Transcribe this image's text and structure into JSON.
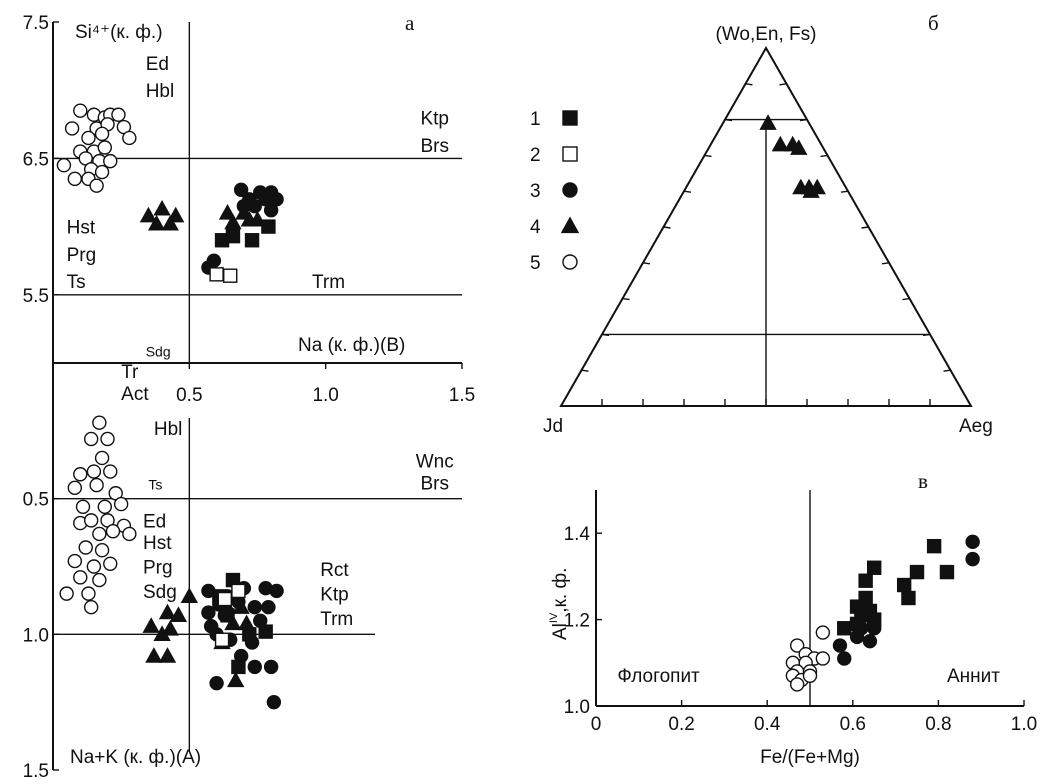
{
  "panel_labels": {
    "a": "а",
    "b": "б",
    "c": "в"
  },
  "legend": [
    {
      "label": "1",
      "marker": "square-filled"
    },
    {
      "label": "2",
      "marker": "square-open"
    },
    {
      "label": "3",
      "marker": "circle-filled"
    },
    {
      "label": "4",
      "marker": "triangle-filled"
    },
    {
      "label": "5",
      "marker": "circle-open"
    }
  ],
  "chart_data": [
    {
      "id": "a-upper",
      "type": "scatter",
      "ylabel": "Si⁴⁺(к. ф.)",
      "xlabel": "Na (к. ф.)(B)",
      "x_ticks": [
        "0.5",
        "1.0",
        "1.5"
      ],
      "y_ticks": [
        "7.5",
        "6.5",
        "5.5"
      ],
      "xlim": [
        0,
        1.5
      ],
      "ylim": [
        5.0,
        7.5
      ],
      "divider_x": 0.5,
      "divider_y": [
        6.5,
        5.5
      ],
      "field_labels": [
        {
          "text": "Ed",
          "x": 0.34,
          "y": 7.2
        },
        {
          "text": "Hbl",
          "x": 0.34,
          "y": 7.0
        },
        {
          "text": "Ktp",
          "x": 1.4,
          "y": 6.8
        },
        {
          "text": "Brs",
          "x": 1.4,
          "y": 6.6
        },
        {
          "text": "Hst",
          "x": 0.05,
          "y": 6.0
        },
        {
          "text": "Prg",
          "x": 0.05,
          "y": 5.8
        },
        {
          "text": "Ts",
          "x": 0.05,
          "y": 5.6
        },
        {
          "text": "Trm",
          "x": 0.95,
          "y": 5.6
        },
        {
          "text": "Sdg",
          "x": 0.34,
          "y": 5.1,
          "small": true
        }
      ],
      "series": [
        {
          "marker": "circle-open",
          "points": [
            [
              0.1,
              6.85
            ],
            [
              0.15,
              6.82
            ],
            [
              0.19,
              6.8
            ],
            [
              0.21,
              6.82
            ],
            [
              0.24,
              6.82
            ],
            [
              0.07,
              6.72
            ],
            [
              0.16,
              6.72
            ],
            [
              0.2,
              6.75
            ],
            [
              0.26,
              6.73
            ],
            [
              0.13,
              6.65
            ],
            [
              0.18,
              6.68
            ],
            [
              0.28,
              6.65
            ],
            [
              0.1,
              6.55
            ],
            [
              0.15,
              6.55
            ],
            [
              0.19,
              6.58
            ],
            [
              0.12,
              6.5
            ],
            [
              0.17,
              6.48
            ],
            [
              0.21,
              6.48
            ],
            [
              0.04,
              6.45
            ],
            [
              0.14,
              6.42
            ],
            [
              0.18,
              6.4
            ],
            [
              0.08,
              6.35
            ],
            [
              0.13,
              6.35
            ],
            [
              0.16,
              6.3
            ]
          ]
        },
        {
          "marker": "circle-filled",
          "points": [
            [
              0.69,
              6.27
            ],
            [
              0.76,
              6.25
            ],
            [
              0.8,
              6.25
            ],
            [
              0.72,
              6.2
            ],
            [
              0.78,
              6.2
            ],
            [
              0.82,
              6.2
            ],
            [
              0.7,
              6.15
            ],
            [
              0.74,
              6.15
            ],
            [
              0.8,
              6.12
            ],
            [
              0.59,
              5.75
            ],
            [
              0.57,
              5.7
            ]
          ]
        },
        {
          "marker": "triangle-filled",
          "points": [
            [
              0.4,
              6.13
            ],
            [
              0.35,
              6.08
            ],
            [
              0.45,
              6.08
            ],
            [
              0.38,
              6.02
            ],
            [
              0.43,
              6.02
            ],
            [
              0.64,
              6.1
            ],
            [
              0.7,
              6.1
            ],
            [
              0.66,
              6.03
            ],
            [
              0.72,
              6.05
            ],
            [
              0.75,
              6.05
            ]
          ]
        },
        {
          "marker": "square-filled",
          "points": [
            [
              0.66,
              5.93
            ],
            [
              0.62,
              5.9
            ],
            [
              0.73,
              5.9
            ],
            [
              0.79,
              6.0
            ]
          ]
        },
        {
          "marker": "square-open",
          "points": [
            [
              0.6,
              5.65
            ],
            [
              0.65,
              5.64
            ]
          ]
        }
      ]
    },
    {
      "id": "a-lower",
      "type": "scatter",
      "xlabel": "Na+K (к. ф.)(A)",
      "y_ticks": [
        "0.5",
        "1.0",
        "1.5"
      ],
      "ylim": [
        0.0,
        1.5
      ],
      "y_inverted": true,
      "divider_x": 0.5,
      "divider_y": [
        0.5,
        1.0
      ],
      "field_labels": [
        {
          "text": "Tr",
          "x": 0.25,
          "y": 0.03
        },
        {
          "text": "Act",
          "x": 0.25,
          "y": 0.11
        },
        {
          "text": "Hbl",
          "x": 0.37,
          "y": 0.24
        },
        {
          "text": "Wnc",
          "x": 1.4,
          "y": 0.36
        },
        {
          "text": "Ts",
          "x": 0.35,
          "y": 0.44,
          "small": true
        },
        {
          "text": "Brs",
          "x": 1.4,
          "y": 0.44
        },
        {
          "text": "Ed",
          "x": 0.33,
          "y": 0.58
        },
        {
          "text": "Hst",
          "x": 0.33,
          "y": 0.66
        },
        {
          "text": "Prg",
          "x": 0.33,
          "y": 0.75
        },
        {
          "text": "Sdg",
          "x": 0.33,
          "y": 0.84
        },
        {
          "text": "Rct",
          "x": 0.98,
          "y": 0.76
        },
        {
          "text": "Ktp",
          "x": 0.98,
          "y": 0.85
        },
        {
          "text": "Trm",
          "x": 0.98,
          "y": 0.94
        }
      ],
      "series": [
        {
          "marker": "circle-open",
          "points": [
            [
              0.17,
              0.22
            ],
            [
              0.14,
              0.28
            ],
            [
              0.2,
              0.28
            ],
            [
              0.18,
              0.35
            ],
            [
              0.1,
              0.41
            ],
            [
              0.15,
              0.4
            ],
            [
              0.21,
              0.4
            ],
            [
              0.08,
              0.46
            ],
            [
              0.16,
              0.45
            ],
            [
              0.23,
              0.48
            ],
            [
              0.11,
              0.53
            ],
            [
              0.19,
              0.53
            ],
            [
              0.25,
              0.52
            ],
            [
              0.1,
              0.59
            ],
            [
              0.14,
              0.58
            ],
            [
              0.2,
              0.58
            ],
            [
              0.26,
              0.6
            ],
            [
              0.17,
              0.63
            ],
            [
              0.22,
              0.62
            ],
            [
              0.28,
              0.63
            ],
            [
              0.12,
              0.68
            ],
            [
              0.18,
              0.69
            ],
            [
              0.08,
              0.73
            ],
            [
              0.15,
              0.75
            ],
            [
              0.21,
              0.74
            ],
            [
              0.1,
              0.79
            ],
            [
              0.17,
              0.8
            ],
            [
              0.05,
              0.85
            ],
            [
              0.13,
              0.85
            ],
            [
              0.14,
              0.9
            ]
          ]
        },
        {
          "marker": "circle-filled",
          "points": [
            [
              0.57,
              0.84
            ],
            [
              0.64,
              0.86
            ],
            [
              0.7,
              0.83
            ],
            [
              0.78,
              0.83
            ],
            [
              0.82,
              0.84
            ],
            [
              0.61,
              0.89
            ],
            [
              0.68,
              0.88
            ],
            [
              0.57,
              0.92
            ],
            [
              0.63,
              0.93
            ],
            [
              0.74,
              0.9
            ],
            [
              0.79,
              0.9
            ],
            [
              0.76,
              0.95
            ],
            [
              0.58,
              0.97
            ],
            [
              0.6,
              1.0
            ],
            [
              0.65,
              1.02
            ],
            [
              0.73,
              1.03
            ],
            [
              0.69,
              1.08
            ],
            [
              0.8,
              1.12
            ],
            [
              0.6,
              1.18
            ],
            [
              0.74,
              1.12
            ],
            [
              0.81,
              1.25
            ]
          ]
        },
        {
          "marker": "triangle-filled",
          "points": [
            [
              0.5,
              0.86
            ],
            [
              0.42,
              0.92
            ],
            [
              0.46,
              0.93
            ],
            [
              0.36,
              0.97
            ],
            [
              0.43,
              0.98
            ],
            [
              0.4,
              1.0
            ],
            [
              0.37,
              1.08
            ],
            [
              0.42,
              1.08
            ],
            [
              0.64,
              0.9
            ],
            [
              0.69,
              0.9
            ],
            [
              0.66,
              0.96
            ],
            [
              0.71,
              0.96
            ],
            [
              0.62,
              1.03
            ],
            [
              0.67,
              1.17
            ]
          ]
        },
        {
          "marker": "square-filled",
          "points": [
            [
              0.66,
              0.8
            ],
            [
              0.61,
              0.86
            ],
            [
              0.64,
              0.93
            ],
            [
              0.78,
              0.99
            ],
            [
              0.72,
              1.0
            ],
            [
              0.68,
              1.12
            ]
          ]
        },
        {
          "marker": "square-open",
          "points": [
            [
              0.68,
              0.84
            ],
            [
              0.63,
              0.87
            ],
            [
              0.62,
              1.02
            ]
          ]
        }
      ]
    },
    {
      "id": "b",
      "type": "ternary",
      "vertices": {
        "top": "(Wo,En, Fs)",
        "left": "Jd",
        "right": "Aeg"
      },
      "lines": [
        {
          "top_fraction": 0.8
        },
        {
          "top_fraction": 0.2
        },
        {
          "jd_aeg_split": 0.5
        }
      ],
      "series": [
        {
          "marker": "triangle-filled",
          "points": [
            [
              0.79,
              0.1,
              0.11
            ],
            [
              0.73,
              0.1,
              0.17
            ],
            [
              0.73,
              0.07,
              0.2
            ],
            [
              0.72,
              0.06,
              0.22
            ],
            [
              0.6,
              0.09,
              0.31
            ],
            [
              0.61,
              0.11,
              0.28
            ],
            [
              0.61,
              0.09,
              0.3
            ],
            [
              0.61,
              0.07,
              0.32
            ]
          ]
        }
      ]
    },
    {
      "id": "c",
      "type": "scatter",
      "xlabel": "Fe/(Fe+Mg)",
      "ylabel": "Al",
      "ylabel_sup": "IV",
      "ylabel_suffix": ",к. ф.",
      "x_ticks": [
        "0",
        "0.2",
        "0.4",
        "0.6",
        "0.8",
        "1.0"
      ],
      "y_ticks": [
        "1.0",
        "1.2",
        "1.4"
      ],
      "xlim": [
        0,
        1.0
      ],
      "ylim": [
        1.0,
        1.5
      ],
      "divider_x": 0.5,
      "field_labels": [
        {
          "text": "Флогопит",
          "x": 0.05,
          "y": 1.07
        },
        {
          "text": "Аннит",
          "x": 0.82,
          "y": 1.07
        }
      ],
      "series": [
        {
          "marker": "circle-open",
          "points": [
            [
              0.47,
              1.14
            ],
            [
              0.53,
              1.17
            ],
            [
              0.49,
              1.12
            ],
            [
              0.51,
              1.11
            ],
            [
              0.46,
              1.1
            ],
            [
              0.49,
              1.1
            ],
            [
              0.53,
              1.11
            ],
            [
              0.47,
              1.08
            ],
            [
              0.5,
              1.08
            ],
            [
              0.46,
              1.07
            ],
            [
              0.48,
              1.06
            ],
            [
              0.5,
              1.07
            ],
            [
              0.47,
              1.05
            ]
          ]
        },
        {
          "marker": "circle-filled",
          "points": [
            [
              0.57,
              1.14
            ],
            [
              0.58,
              1.11
            ],
            [
              0.61,
              1.16
            ],
            [
              0.62,
              1.18
            ],
            [
              0.64,
              1.15
            ],
            [
              0.65,
              1.18
            ],
            [
              0.88,
              1.38
            ],
            [
              0.88,
              1.34
            ]
          ]
        },
        {
          "marker": "square-filled",
          "points": [
            [
              0.58,
              1.18
            ],
            [
              0.61,
              1.19
            ],
            [
              0.61,
              1.23
            ],
            [
              0.62,
              1.21
            ],
            [
              0.64,
              1.22
            ],
            [
              0.65,
              1.2
            ],
            [
              0.63,
              1.25
            ],
            [
              0.63,
              1.29
            ],
            [
              0.65,
              1.32
            ],
            [
              0.72,
              1.28
            ],
            [
              0.73,
              1.25
            ],
            [
              0.75,
              1.31
            ],
            [
              0.79,
              1.37
            ],
            [
              0.82,
              1.31
            ]
          ]
        }
      ]
    }
  ]
}
